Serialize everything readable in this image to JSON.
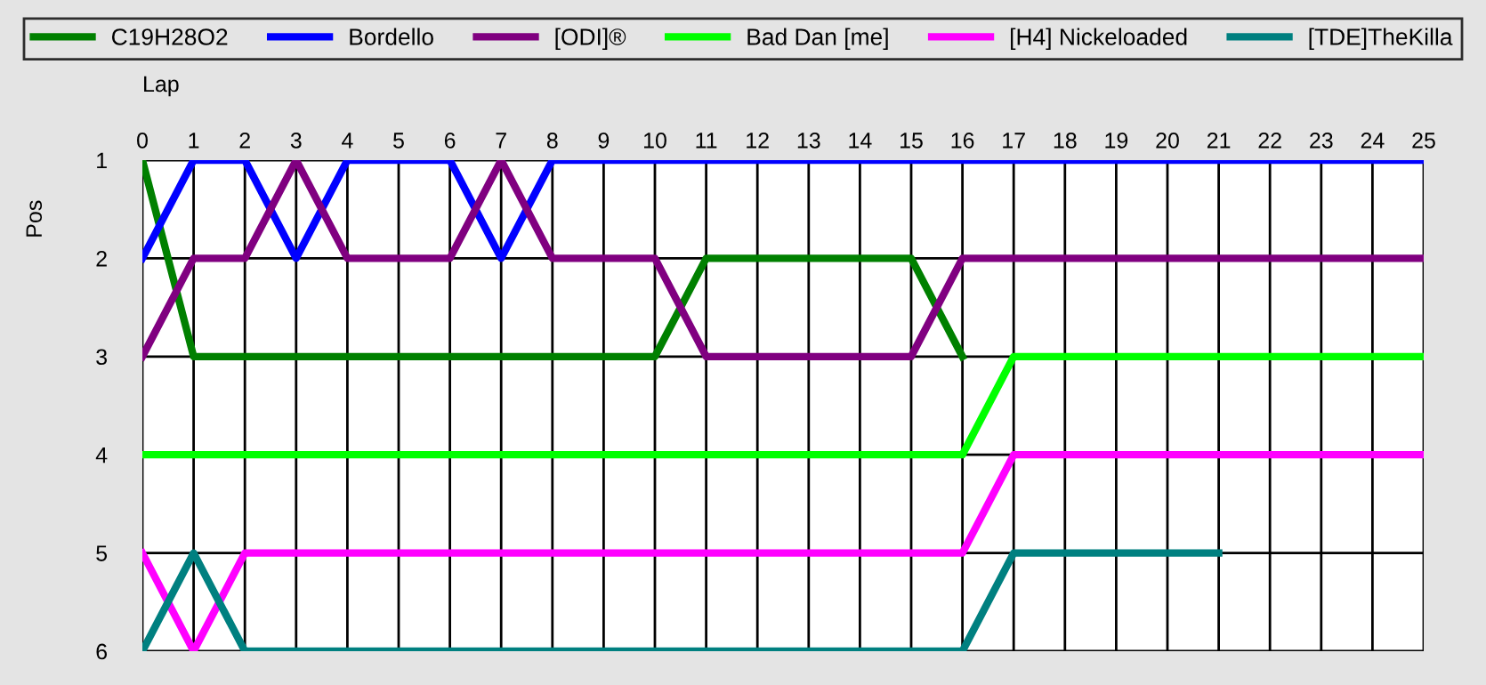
{
  "chart_data": {
    "type": "line",
    "xlabel": "Lap",
    "ylabel": "Pos",
    "xlim": [
      0,
      25
    ],
    "xticks": [
      0,
      1,
      2,
      3,
      4,
      5,
      6,
      7,
      8,
      9,
      10,
      11,
      12,
      13,
      14,
      15,
      16,
      17,
      18,
      19,
      20,
      21,
      22,
      23,
      24,
      25
    ],
    "ylim": [
      6,
      1
    ],
    "yticks": [
      1,
      2,
      3,
      4,
      5,
      6
    ],
    "grid": true,
    "legend": "top",
    "marker": "none",
    "line_style": "solid",
    "x": [
      0,
      1,
      2,
      3,
      4,
      5,
      6,
      7,
      8,
      9,
      10,
      11,
      12,
      13,
      14,
      15,
      16,
      17,
      18,
      19,
      20,
      21,
      22,
      23,
      24,
      25
    ],
    "series": [
      {
        "name": "C19H28O2",
        "color": "#008000",
        "values": [
          1,
          3,
          3,
          3,
          3,
          3,
          3,
          3,
          3,
          3,
          3,
          2,
          2,
          2,
          2,
          2,
          3,
          null,
          null,
          null,
          null,
          null,
          null,
          null,
          null,
          null
        ]
      },
      {
        "name": "Bordello",
        "color": "#0000ff",
        "values": [
          2,
          1,
          1,
          2,
          1,
          1,
          1,
          2,
          1,
          1,
          1,
          1,
          1,
          1,
          1,
          1,
          1,
          1,
          1,
          1,
          1,
          1,
          1,
          1,
          1,
          1
        ]
      },
      {
        "name": "[ODI]®",
        "color": "#800080",
        "values": [
          3,
          2,
          2,
          1,
          2,
          2,
          2,
          1,
          2,
          2,
          2,
          3,
          3,
          3,
          3,
          3,
          2,
          2,
          2,
          2,
          2,
          2,
          2,
          2,
          2,
          2
        ]
      },
      {
        "name": "Bad Dan [me]",
        "color": "#00ff00",
        "values": [
          4,
          4,
          4,
          4,
          4,
          4,
          4,
          4,
          4,
          4,
          4,
          4,
          4,
          4,
          4,
          4,
          4,
          3,
          3,
          3,
          3,
          3,
          3,
          3,
          3,
          3
        ]
      },
      {
        "name": "[H4] Nickeloaded",
        "color": "#ff00ff",
        "values": [
          5,
          6,
          5,
          5,
          5,
          5,
          5,
          5,
          5,
          5,
          5,
          5,
          5,
          5,
          5,
          5,
          5,
          4,
          4,
          4,
          4,
          4,
          4,
          4,
          4,
          4
        ]
      },
      {
        "name": "[TDE]TheKilla",
        "color": "#008080",
        "values": [
          6,
          5,
          6,
          6,
          6,
          6,
          6,
          6,
          6,
          6,
          6,
          6,
          6,
          6,
          6,
          6,
          6,
          5,
          5,
          5,
          5,
          5,
          null,
          null,
          null,
          null
        ]
      }
    ]
  }
}
